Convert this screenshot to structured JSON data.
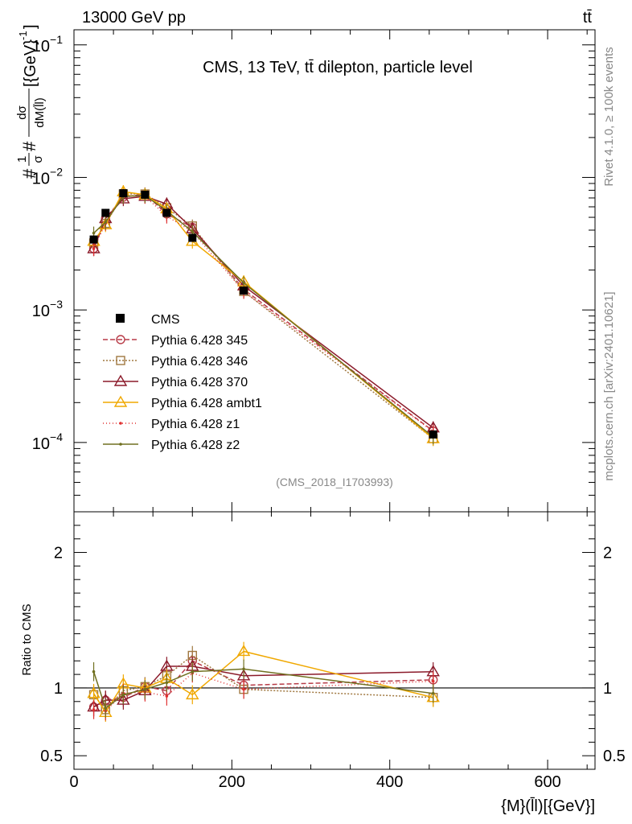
{
  "header": {
    "beam_label": "13000 GeV pp",
    "process_label": "tt̄"
  },
  "side_labels": {
    "rivet": "Rivet 4.1.0, ≥ 100k events",
    "mcplots": "mcplots.cern.ch [arXiv:2401.10621]"
  },
  "chart_data": {
    "type": "line",
    "title": "CMS, 13 TeV, tt̄ dilepton, particle level",
    "analysis_id": "(CMS_2018_I1703993)",
    "ylabel": "#1/σ#dσ/dM(l̄l)[{GeV}⁻¹]",
    "ylabel_parts": {
      "frac_top": "1",
      "frac_bottom": "σ",
      "d_top": "dσ",
      "d_bottom": "dM(l̄l)",
      "unit": "[{GeV}",
      "unit_exp": "-1",
      "unit_close": "]"
    },
    "xlabel": "{M}(l̄l)[{GeV}]",
    "ratio_ylabel": "Ratio to CMS",
    "xlim": [
      0,
      660
    ],
    "ylim": [
      3e-05,
      0.13
    ],
    "yscale": "log",
    "ratio_ylim": [
      0.4,
      2.3
    ],
    "x_ticks": [
      "0",
      "200",
      "400",
      "600"
    ],
    "x_tick_values": [
      0,
      200,
      400,
      600
    ],
    "y_ticks": [
      {
        "value": 0.1,
        "base": "10",
        "exp": "−1"
      },
      {
        "value": 0.01,
        "base": "10",
        "exp": "−2"
      },
      {
        "value": 0.001,
        "base": "10",
        "exp": "−3"
      },
      {
        "value": 0.0001,
        "base": "10",
        "exp": "−4"
      }
    ],
    "ratio_ticks": [
      {
        "value": 2,
        "label": "2"
      },
      {
        "value": 1,
        "label": "1"
      },
      {
        "value": 0.5,
        "label": "0.5"
      }
    ],
    "x": [
      25,
      40,
      62.5,
      90,
      117.5,
      150,
      215,
      455
    ],
    "data": {
      "name": "CMS",
      "color": "#000000",
      "values": [
        0.0034,
        0.0054,
        0.0076,
        0.0074,
        0.0054,
        0.0035,
        0.0014,
        0.000115
      ]
    },
    "series": [
      {
        "name": "Pythia 6.428 345",
        "color": "#b83c48",
        "dash": "6,3",
        "marker": "circle",
        "values": [
          0.0029,
          0.0049,
          0.0071,
          0.0075,
          0.0053,
          0.0042,
          0.00143,
          0.000122
        ],
        "ratio": [
          0.86,
          0.91,
          0.93,
          1.01,
          0.98,
          1.2,
          1.02,
          1.06
        ]
      },
      {
        "name": "Pythia 6.428 346",
        "color": "#a07840",
        "dash": "2,2",
        "marker": "square",
        "values": [
          0.0032,
          0.0045,
          0.0075,
          0.0075,
          0.0059,
          0.0043,
          0.00138,
          0.000107
        ],
        "ratio": [
          0.95,
          0.84,
          0.98,
          1.01,
          1.09,
          1.24,
          0.99,
          0.93
        ]
      },
      {
        "name": "Pythia 6.428 370",
        "color": "#8b1a2a",
        "dash": "",
        "marker": "triangle",
        "values": [
          0.0029,
          0.0049,
          0.0069,
          0.0072,
          0.0063,
          0.0041,
          0.00152,
          0.000129
        ],
        "ratio": [
          0.86,
          0.91,
          0.91,
          0.98,
          1.16,
          1.16,
          1.09,
          1.12
        ]
      },
      {
        "name": "Pythia 6.428 ambt1",
        "color": "#f0a800",
        "dash": "",
        "marker": "triangle",
        "values": [
          0.0033,
          0.0044,
          0.0078,
          0.0074,
          0.0058,
          0.0033,
          0.00163,
          0.000107
        ],
        "ratio": [
          0.96,
          0.82,
          1.03,
          1.0,
          1.07,
          0.95,
          1.27,
          0.93
        ]
      },
      {
        "name": "Pythia 6.428 z1",
        "color": "#e03030",
        "dash": "1,3",
        "marker": "dot",
        "values": [
          0.0029,
          0.0045,
          0.0073,
          0.0072,
          0.0051,
          0.0039,
          0.00138,
          0.000121
        ],
        "ratio": [
          0.84,
          0.83,
          0.96,
          0.97,
          0.94,
          1.11,
          0.99,
          1.05
        ]
      },
      {
        "name": "Pythia 6.428 z2",
        "color": "#707020",
        "dash": "",
        "marker": "dot",
        "values": [
          0.0038,
          0.0046,
          0.0072,
          0.0073,
          0.0056,
          0.0039,
          0.0016,
          0.00011
        ],
        "ratio": [
          1.12,
          0.85,
          0.95,
          0.99,
          1.04,
          1.12,
          1.14,
          0.96
        ]
      }
    ]
  }
}
